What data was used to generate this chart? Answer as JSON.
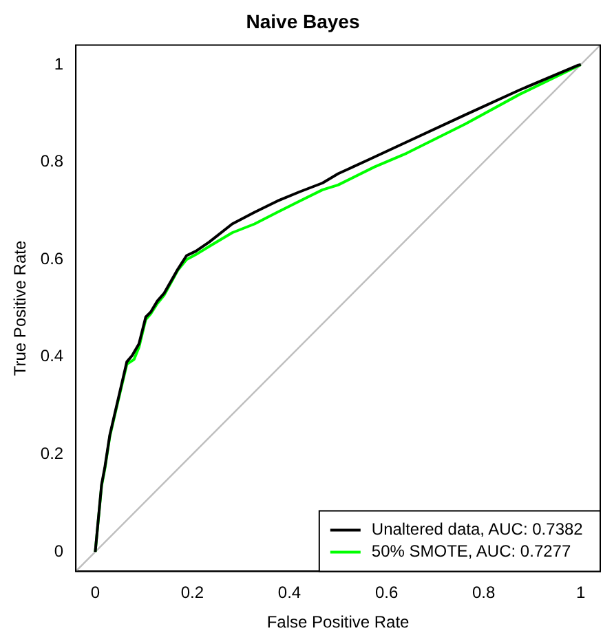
{
  "chart_data": {
    "type": "line",
    "title": "Naive Bayes",
    "xlabel": "False Positive Rate",
    "ylabel": "True Positive Rate",
    "xlim": [
      -0.04,
      1.04
    ],
    "ylim": [
      -0.04,
      1.04
    ],
    "xticks": [
      0,
      0.2,
      0.4,
      0.6,
      0.8,
      1
    ],
    "yticks": [
      0,
      0.2,
      0.4,
      0.6,
      0.8,
      1
    ],
    "grid": false,
    "legend": "bottom right",
    "marker": "none",
    "line_style": "solid",
    "series": [
      {
        "name": "Unaltered data, AUC: 0.7382",
        "color": "#000000",
        "x": [
          0,
          0.013,
          0.02,
          0.03,
          0.044,
          0.065,
          0.076,
          0.09,
          0.104,
          0.114,
          0.128,
          0.142,
          0.17,
          0.188,
          0.207,
          0.235,
          0.282,
          0.328,
          0.375,
          0.421,
          0.468,
          0.5,
          0.561,
          0.641,
          0.762,
          0.874,
          0.995,
          1
        ],
        "values": [
          0,
          0.138,
          0.175,
          0.24,
          0.3,
          0.39,
          0.403,
          0.427,
          0.482,
          0.492,
          0.515,
          0.531,
          0.58,
          0.608,
          0.617,
          0.636,
          0.673,
          0.697,
          0.72,
          0.739,
          0.757,
          0.776,
          0.804,
          0.841,
          0.897,
          0.948,
          0.999,
          1
        ]
      },
      {
        "name": "50% SMOTE, AUC: 0.7277",
        "color": "#00ff00",
        "x": [
          0,
          0.013,
          0.02,
          0.03,
          0.044,
          0.065,
          0.08,
          0.09,
          0.104,
          0.114,
          0.128,
          0.142,
          0.17,
          0.188,
          0.207,
          0.235,
          0.282,
          0.328,
          0.375,
          0.421,
          0.468,
          0.5,
          0.575,
          0.641,
          0.762,
          0.874,
          1
        ],
        "values": [
          0,
          0.135,
          0.172,
          0.237,
          0.297,
          0.385,
          0.395,
          0.42,
          0.477,
          0.488,
          0.51,
          0.527,
          0.578,
          0.6,
          0.61,
          0.627,
          0.655,
          0.673,
          0.697,
          0.72,
          0.743,
          0.753,
          0.79,
          0.818,
          0.878,
          0.939,
          1
        ]
      },
      {
        "color": "#bebebe",
        "x": [
          -0.04,
          1.04
        ],
        "values": [
          -0.04,
          1.04
        ]
      }
    ]
  }
}
